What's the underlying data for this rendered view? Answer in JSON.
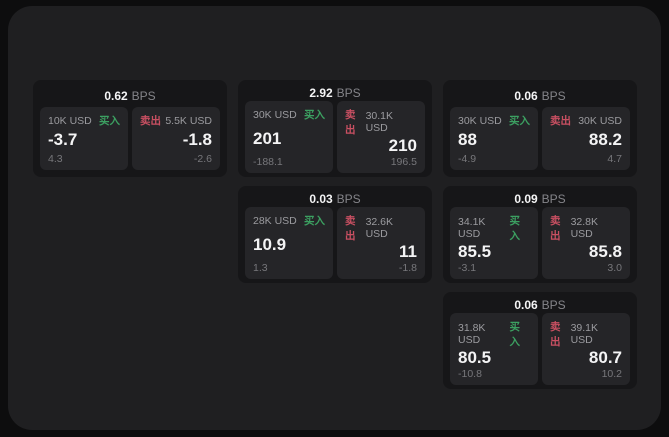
{
  "labels": {
    "bps_unit": "BPS",
    "buy": "买入",
    "sell": "卖出"
  },
  "colors": {
    "buy_accent": "#3ca061",
    "sell_accent": "#c95062",
    "window_bg": "#1f1f21",
    "card_bg": "#161618",
    "tile_bg": "#252528"
  },
  "cards": [
    {
      "bps": "0.62",
      "buy": {
        "size": "10K USD",
        "price": "-3.7",
        "delta": "4.3"
      },
      "sell": {
        "size": "5.5K USD",
        "price": "-1.8",
        "delta": "-2.6"
      }
    },
    {
      "bps": "2.92",
      "buy": {
        "size": "30K USD",
        "price": "201",
        "delta": "-188.1"
      },
      "sell": {
        "size": "30.1K USD",
        "price": "210",
        "delta": "196.5"
      }
    },
    {
      "bps": "0.06",
      "buy": {
        "size": "30K USD",
        "price": "88",
        "delta": "-4.9"
      },
      "sell": {
        "size": "30K USD",
        "price": "88.2",
        "delta": "4.7"
      }
    },
    {
      "bps": "0.03",
      "buy": {
        "size": "28K USD",
        "price": "10.9",
        "delta": "1.3"
      },
      "sell": {
        "size": "32.6K USD",
        "price": "11",
        "delta": "-1.8"
      }
    },
    {
      "bps": "0.09",
      "buy": {
        "size": "34.1K USD",
        "price": "85.5",
        "delta": "-3.1"
      },
      "sell": {
        "size": "32.8K USD",
        "price": "85.8",
        "delta": "3.0"
      }
    },
    {
      "bps": "0.06",
      "buy": {
        "size": "31.8K USD",
        "price": "80.5",
        "delta": "-10.8"
      },
      "sell": {
        "size": "39.1K USD",
        "price": "80.7",
        "delta": "10.2"
      }
    }
  ]
}
